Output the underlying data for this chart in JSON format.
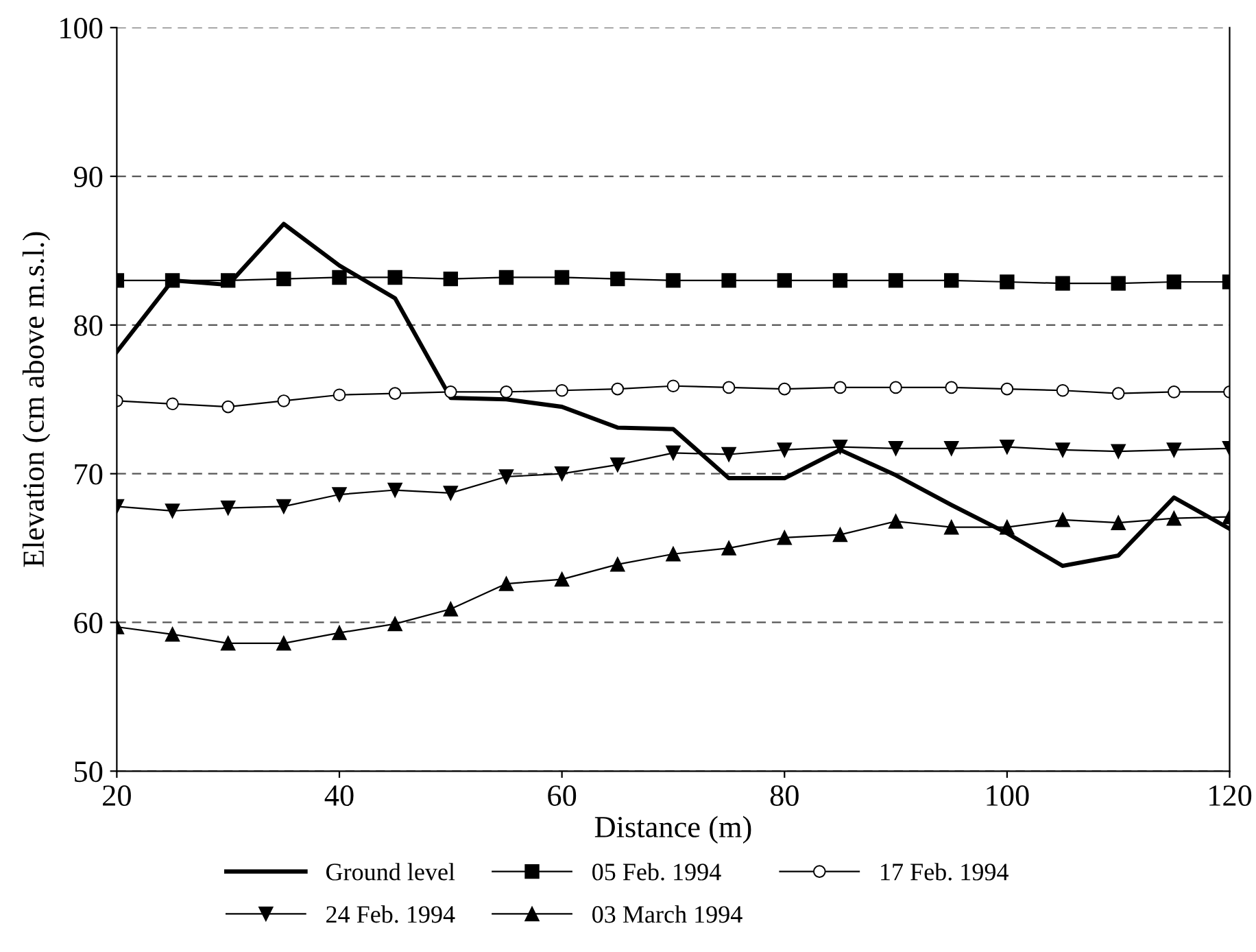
{
  "chart_data": {
    "type": "line",
    "xlabel": "Distance (m)",
    "ylabel": "Elevation (cm above m.s.l.)",
    "x": [
      20,
      25,
      30,
      35,
      40,
      45,
      50,
      55,
      60,
      65,
      70,
      75,
      80,
      85,
      90,
      95,
      100,
      105,
      110,
      115,
      120
    ],
    "xlim": [
      20,
      120
    ],
    "xticks": [
      20,
      40,
      60,
      80,
      100,
      120
    ],
    "ylim": [
      50,
      100
    ],
    "yticks": [
      50,
      60,
      70,
      80,
      90,
      100
    ],
    "grid": "y",
    "legend": "bottom",
    "line_style": "solid",
    "series": [
      {
        "name": "Ground level",
        "color": "#000000",
        "marker": "none",
        "values": [
          78.2,
          83.0,
          82.7,
          86.8,
          84.0,
          81.8,
          75.1,
          75.0,
          74.5,
          73.1,
          73.0,
          69.7,
          69.7,
          71.6,
          69.9,
          67.9,
          66.0,
          63.8,
          64.5,
          68.4,
          66.3
        ]
      },
      {
        "name": "05 Feb. 1994",
        "color": "#000000",
        "marker": "square",
        "values": [
          83.0,
          83.0,
          83.0,
          83.1,
          83.2,
          83.2,
          83.1,
          83.2,
          83.2,
          83.1,
          83.0,
          83.0,
          83.0,
          83.0,
          83.0,
          83.0,
          82.9,
          82.8,
          82.8,
          82.9,
          82.9
        ]
      },
      {
        "name": "17 Feb. 1994",
        "color": "#000000",
        "marker": "circle",
        "values": [
          74.9,
          74.7,
          74.5,
          74.9,
          75.3,
          75.4,
          75.5,
          75.5,
          75.6,
          75.7,
          75.9,
          75.8,
          75.7,
          75.8,
          75.8,
          75.8,
          75.7,
          75.6,
          75.4,
          75.5,
          75.5
        ]
      },
      {
        "name": "24 Feb. 1994",
        "color": "#000000",
        "marker": "triangle_down",
        "values": [
          67.8,
          67.5,
          67.7,
          67.8,
          68.6,
          68.9,
          68.7,
          69.8,
          70.0,
          70.6,
          71.4,
          71.3,
          71.6,
          71.8,
          71.7,
          71.7,
          71.8,
          71.6,
          71.5,
          71.6,
          71.7
        ]
      },
      {
        "name": "03 March 1994",
        "color": "#000000",
        "marker": "triangle",
        "values": [
          59.7,
          59.2,
          58.6,
          58.6,
          59.3,
          59.9,
          60.9,
          62.6,
          62.9,
          63.9,
          64.6,
          65.0,
          65.7,
          65.9,
          66.8,
          66.4,
          66.4,
          66.9,
          66.7,
          67.0,
          67.1
        ]
      }
    ]
  }
}
